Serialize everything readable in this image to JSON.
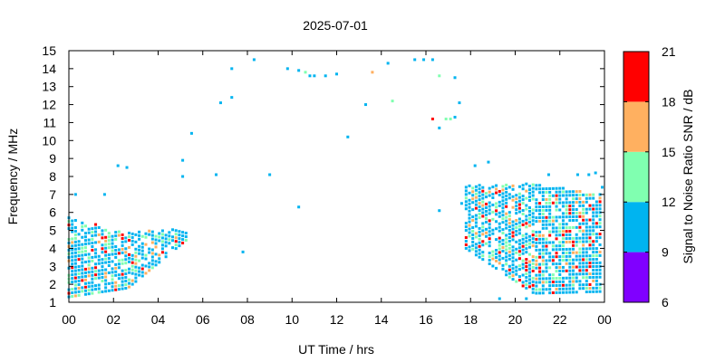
{
  "chart_data": {
    "type": "scatter",
    "title": "2025-07-01",
    "xlabel": "UT Time / hrs",
    "ylabel": "Frequency / MHz",
    "xlim": [
      0,
      24
    ],
    "ylim": [
      1,
      15
    ],
    "xticks": [
      "00",
      "02",
      "04",
      "06",
      "08",
      "10",
      "12",
      "14",
      "16",
      "18",
      "20",
      "22",
      "00"
    ],
    "yticks": [
      "1",
      "2",
      "3",
      "4",
      "5",
      "6",
      "7",
      "8",
      "9",
      "10",
      "11",
      "12",
      "13",
      "14",
      "15"
    ],
    "colorbar": {
      "label": "Signal to Noise Ratio SNR / dB",
      "ticks": [
        "6",
        "9",
        "12",
        "15",
        "18",
        "21"
      ],
      "min": 6,
      "max": 21,
      "bands": [
        {
          "from": 6,
          "to": 9,
          "color": "#8000ff"
        },
        {
          "from": 9,
          "to": 12,
          "color": "#00b4f0"
        },
        {
          "from": 12,
          "to": 15,
          "color": "#80ffb0"
        },
        {
          "from": 15,
          "to": 18,
          "color": "#ffb060"
        },
        {
          "from": 18,
          "to": 21,
          "color": "#ff0000"
        }
      ]
    },
    "clusters": [
      {
        "x_start": 0.0,
        "x_end": 5.3,
        "f_low_start": 1.3,
        "f_low_mid": 1.8,
        "f_low_end": 4.5,
        "f_high_start": 5.7,
        "f_high_mid": 4.9,
        "f_high_end": 5.1,
        "dx": 0.15
      },
      {
        "x_start": 17.8,
        "x_end": 23.9,
        "f_low_start": 4.0,
        "f_low_mid": 1.5,
        "f_low_end": 1.6,
        "f_high_start": 7.5,
        "f_high_mid": 7.6,
        "f_high_end": 7.0,
        "dx": 0.15
      }
    ],
    "points": [
      {
        "x": 0.3,
        "y": 7.0,
        "snr": 10
      },
      {
        "x": 1.6,
        "y": 7.0,
        "snr": 10
      },
      {
        "x": 2.2,
        "y": 8.6,
        "snr": 10
      },
      {
        "x": 2.6,
        "y": 8.5,
        "snr": 10
      },
      {
        "x": 5.1,
        "y": 8.9,
        "snr": 10
      },
      {
        "x": 5.1,
        "y": 8.0,
        "snr": 10
      },
      {
        "x": 5.5,
        "y": 10.4,
        "snr": 10
      },
      {
        "x": 6.6,
        "y": 8.1,
        "snr": 10
      },
      {
        "x": 6.8,
        "y": 12.1,
        "snr": 10
      },
      {
        "x": 7.3,
        "y": 14.0,
        "snr": 10
      },
      {
        "x": 7.3,
        "y": 12.4,
        "snr": 10
      },
      {
        "x": 7.8,
        "y": 3.8,
        "snr": 10
      },
      {
        "x": 8.3,
        "y": 14.5,
        "snr": 10
      },
      {
        "x": 9.0,
        "y": 8.1,
        "snr": 10
      },
      {
        "x": 9.8,
        "y": 14.0,
        "snr": 10
      },
      {
        "x": 10.3,
        "y": 13.9,
        "snr": 10
      },
      {
        "x": 10.3,
        "y": 6.3,
        "snr": 10
      },
      {
        "x": 10.6,
        "y": 13.8,
        "snr": 13
      },
      {
        "x": 10.8,
        "y": 13.6,
        "snr": 10
      },
      {
        "x": 11.0,
        "y": 13.6,
        "snr": 10
      },
      {
        "x": 11.5,
        "y": 13.6,
        "snr": 10
      },
      {
        "x": 12.0,
        "y": 13.7,
        "snr": 10
      },
      {
        "x": 12.5,
        "y": 10.2,
        "snr": 10
      },
      {
        "x": 13.3,
        "y": 12.0,
        "snr": 10
      },
      {
        "x": 13.6,
        "y": 13.8,
        "snr": 16
      },
      {
        "x": 14.3,
        "y": 14.3,
        "snr": 10
      },
      {
        "x": 14.5,
        "y": 12.2,
        "snr": 13
      },
      {
        "x": 15.5,
        "y": 14.5,
        "snr": 10
      },
      {
        "x": 15.9,
        "y": 14.5,
        "snr": 10
      },
      {
        "x": 16.3,
        "y": 14.5,
        "snr": 10
      },
      {
        "x": 16.3,
        "y": 11.2,
        "snr": 19
      },
      {
        "x": 16.6,
        "y": 13.6,
        "snr": 13
      },
      {
        "x": 16.6,
        "y": 10.7,
        "snr": 10
      },
      {
        "x": 16.6,
        "y": 6.1,
        "snr": 10
      },
      {
        "x": 16.9,
        "y": 11.2,
        "snr": 13
      },
      {
        "x": 17.1,
        "y": 11.2,
        "snr": 13
      },
      {
        "x": 17.3,
        "y": 11.3,
        "snr": 10
      },
      {
        "x": 17.3,
        "y": 13.5,
        "snr": 10
      },
      {
        "x": 17.5,
        "y": 12.1,
        "snr": 10
      },
      {
        "x": 17.6,
        "y": 6.5,
        "snr": 10
      },
      {
        "x": 18.2,
        "y": 8.6,
        "snr": 10
      },
      {
        "x": 18.8,
        "y": 8.8,
        "snr": 10
      },
      {
        "x": 19.3,
        "y": 1.2,
        "snr": 10
      },
      {
        "x": 20.5,
        "y": 1.2,
        "snr": 10
      },
      {
        "x": 21.5,
        "y": 8.1,
        "snr": 10
      },
      {
        "x": 22.8,
        "y": 8.1,
        "snr": 10
      },
      {
        "x": 23.3,
        "y": 8.1,
        "snr": 10
      },
      {
        "x": 23.6,
        "y": 8.2,
        "snr": 10
      },
      {
        "x": 23.9,
        "y": 7.4,
        "snr": 10
      }
    ]
  }
}
